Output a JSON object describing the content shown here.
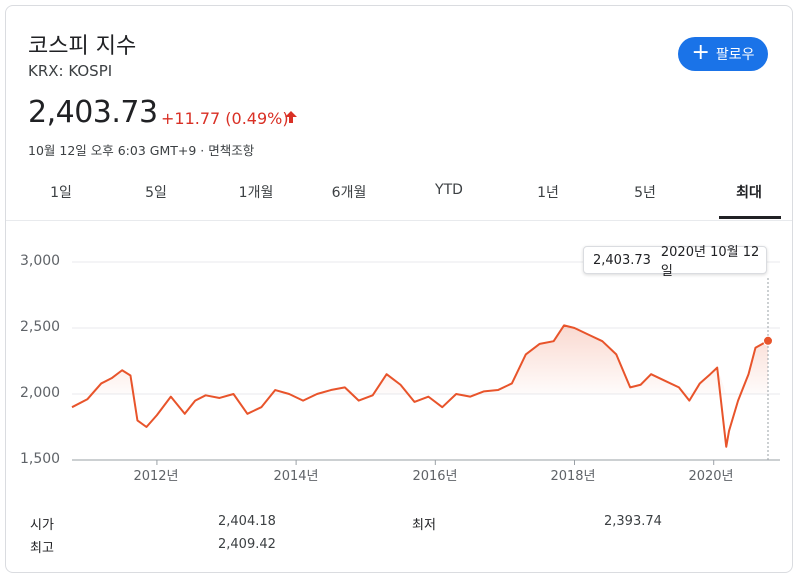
{
  "header": {
    "title": "코스피 지수",
    "ticker": "KRX: KOSPI",
    "follow_label": "팔로우",
    "price": "2,403.73",
    "change": "+11.77 (0.49%)",
    "meta": "10월 12일 오후 6:03 GMT+9 · 면책조항"
  },
  "tabs": [
    "1일",
    "5일",
    "1개월",
    "6개월",
    "YTD",
    "1년",
    "5년",
    "최대"
  ],
  "active_tab": "최대",
  "tooltip": {
    "value": "2,403.73",
    "date": "2020년 10월 12일"
  },
  "colors": {
    "line": "#e8542b",
    "negative": "#d93025",
    "accent": "#1a73e8"
  },
  "chart_data": {
    "type": "line",
    "ylim": [
      1500,
      3000
    ],
    "yticks": [
      "3,000",
      "2,500",
      "2,000",
      "1,500"
    ],
    "xticks": [
      "2012년",
      "2014년",
      "2016년",
      "2018년",
      "2020년"
    ],
    "xlim": [
      2010.78,
      2020.78
    ],
    "baseline": 2000,
    "x": [
      2010.78,
      2011.0,
      2011.2,
      2011.35,
      2011.5,
      2011.62,
      2011.72,
      2011.85,
      2012.0,
      2012.2,
      2012.4,
      2012.55,
      2012.7,
      2012.9,
      2013.1,
      2013.3,
      2013.5,
      2013.7,
      2013.9,
      2014.1,
      2014.3,
      2014.5,
      2014.7,
      2014.9,
      2015.1,
      2015.3,
      2015.5,
      2015.7,
      2015.9,
      2016.1,
      2016.3,
      2016.5,
      2016.7,
      2016.9,
      2017.1,
      2017.3,
      2017.5,
      2017.7,
      2017.85,
      2018.0,
      2018.2,
      2018.4,
      2018.6,
      2018.8,
      2018.95,
      2019.1,
      2019.3,
      2019.5,
      2019.65,
      2019.8,
      2019.95,
      2020.05,
      2020.18,
      2020.22,
      2020.35,
      2020.5,
      2020.6,
      2020.7,
      2020.78
    ],
    "values": [
      1900,
      1960,
      2080,
      2120,
      2180,
      2140,
      1800,
      1750,
      1840,
      1980,
      1850,
      1950,
      1990,
      1970,
      2000,
      1850,
      1900,
      2030,
      2000,
      1950,
      2000,
      2030,
      2050,
      1950,
      1990,
      2150,
      2070,
      1940,
      1980,
      1900,
      2000,
      1980,
      2020,
      2030,
      2080,
      2300,
      2380,
      2400,
      2520,
      2500,
      2450,
      2400,
      2300,
      2050,
      2070,
      2150,
      2100,
      2050,
      1950,
      2080,
      2150,
      2200,
      1600,
      1720,
      1950,
      2150,
      2350,
      2380,
      2403
    ]
  },
  "stats": [
    {
      "label": "시가",
      "value": "2,404.18"
    },
    {
      "label": "최고",
      "value": "2,409.42"
    },
    {
      "label": "최저",
      "value": "2,393.74"
    }
  ]
}
